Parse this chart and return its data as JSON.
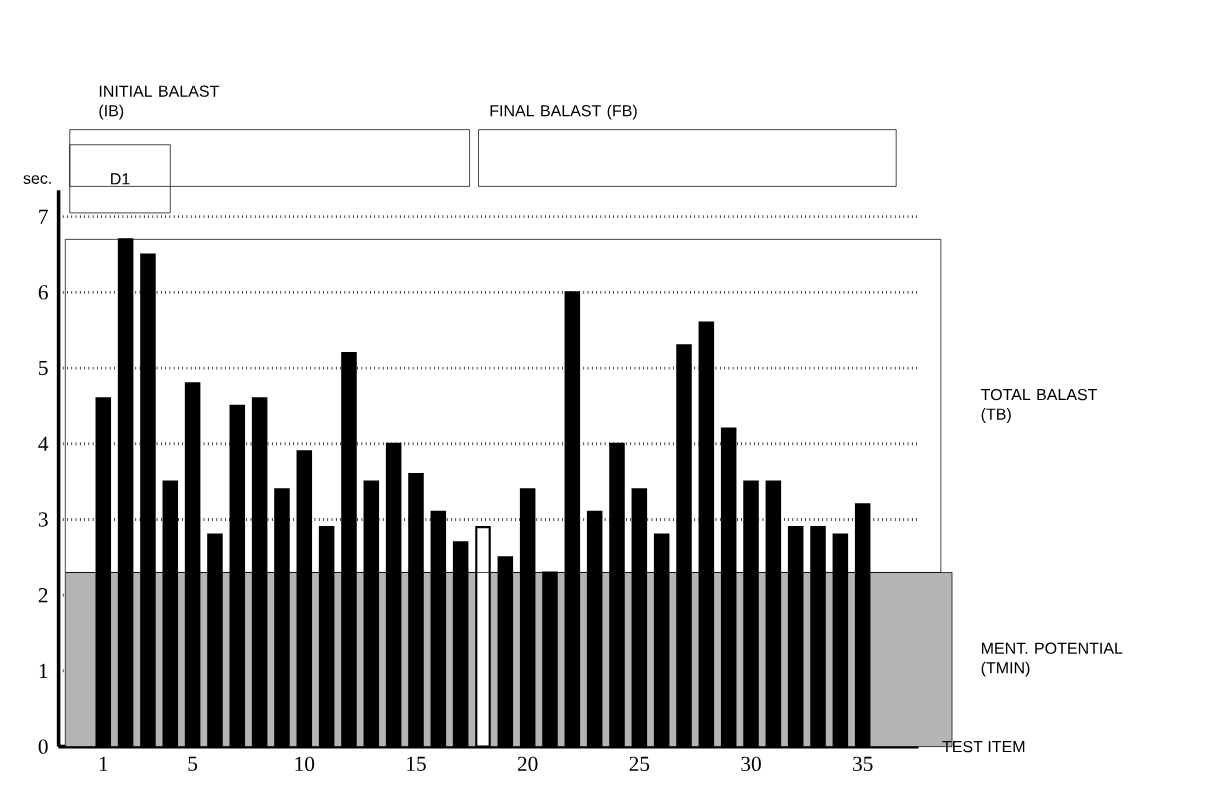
{
  "chart_data": {
    "type": "bar",
    "xlabel": "TEST ITEM",
    "ylabel": "sec.",
    "x": [
      1,
      2,
      3,
      4,
      5,
      6,
      7,
      8,
      9,
      10,
      11,
      12,
      13,
      14,
      15,
      16,
      17,
      18,
      19,
      20,
      21,
      22,
      23,
      24,
      25,
      26,
      27,
      28,
      29,
      30,
      31,
      32,
      33,
      34,
      35
    ],
    "values": [
      4.6,
      6.7,
      6.5,
      3.5,
      4.8,
      2.8,
      4.5,
      4.6,
      3.4,
      3.9,
      2.9,
      5.2,
      3.5,
      4.0,
      3.6,
      3.1,
      2.7,
      2.9,
      2.5,
      3.4,
      2.3,
      6.0,
      3.1,
      4.0,
      3.4,
      2.8,
      5.3,
      5.6,
      4.2,
      3.5,
      3.5,
      2.9,
      2.9,
      2.8,
      3.2
    ],
    "colors": [
      "#000000",
      "#000000",
      "#000000",
      "#000000",
      "#000000",
      "#000000",
      "#000000",
      "#000000",
      "#000000",
      "#000000",
      "#000000",
      "#000000",
      "#000000",
      "#000000",
      "#000000",
      "#000000",
      "#000000",
      "#ffffff",
      "#000000",
      "#000000",
      "#000000",
      "#000000",
      "#000000",
      "#000000",
      "#000000",
      "#000000",
      "#000000",
      "#000000",
      "#000000",
      "#000000",
      "#000000",
      "#000000",
      "#000000",
      "#000000",
      "#000000"
    ],
    "xlim": [
      -1,
      37.5
    ],
    "ylim": [
      0,
      7.35
    ],
    "xticks": [
      1,
      5,
      10,
      15,
      20,
      25,
      30,
      35
    ],
    "yticks": [
      0,
      1,
      2,
      3,
      4,
      5,
      6,
      7
    ],
    "grid": "y",
    "bands": [
      {
        "axis": "y",
        "from": 0,
        "to": 2.3,
        "label": "MENT. POTENTIAL (TMIN)",
        "color": "#b4b4b4"
      }
    ],
    "annotations": [
      "INITIAL BALAST (IB)",
      "FINAL BALAST (FB)",
      "D1",
      "TOTAL BALAST (TB)"
    ]
  }
}
